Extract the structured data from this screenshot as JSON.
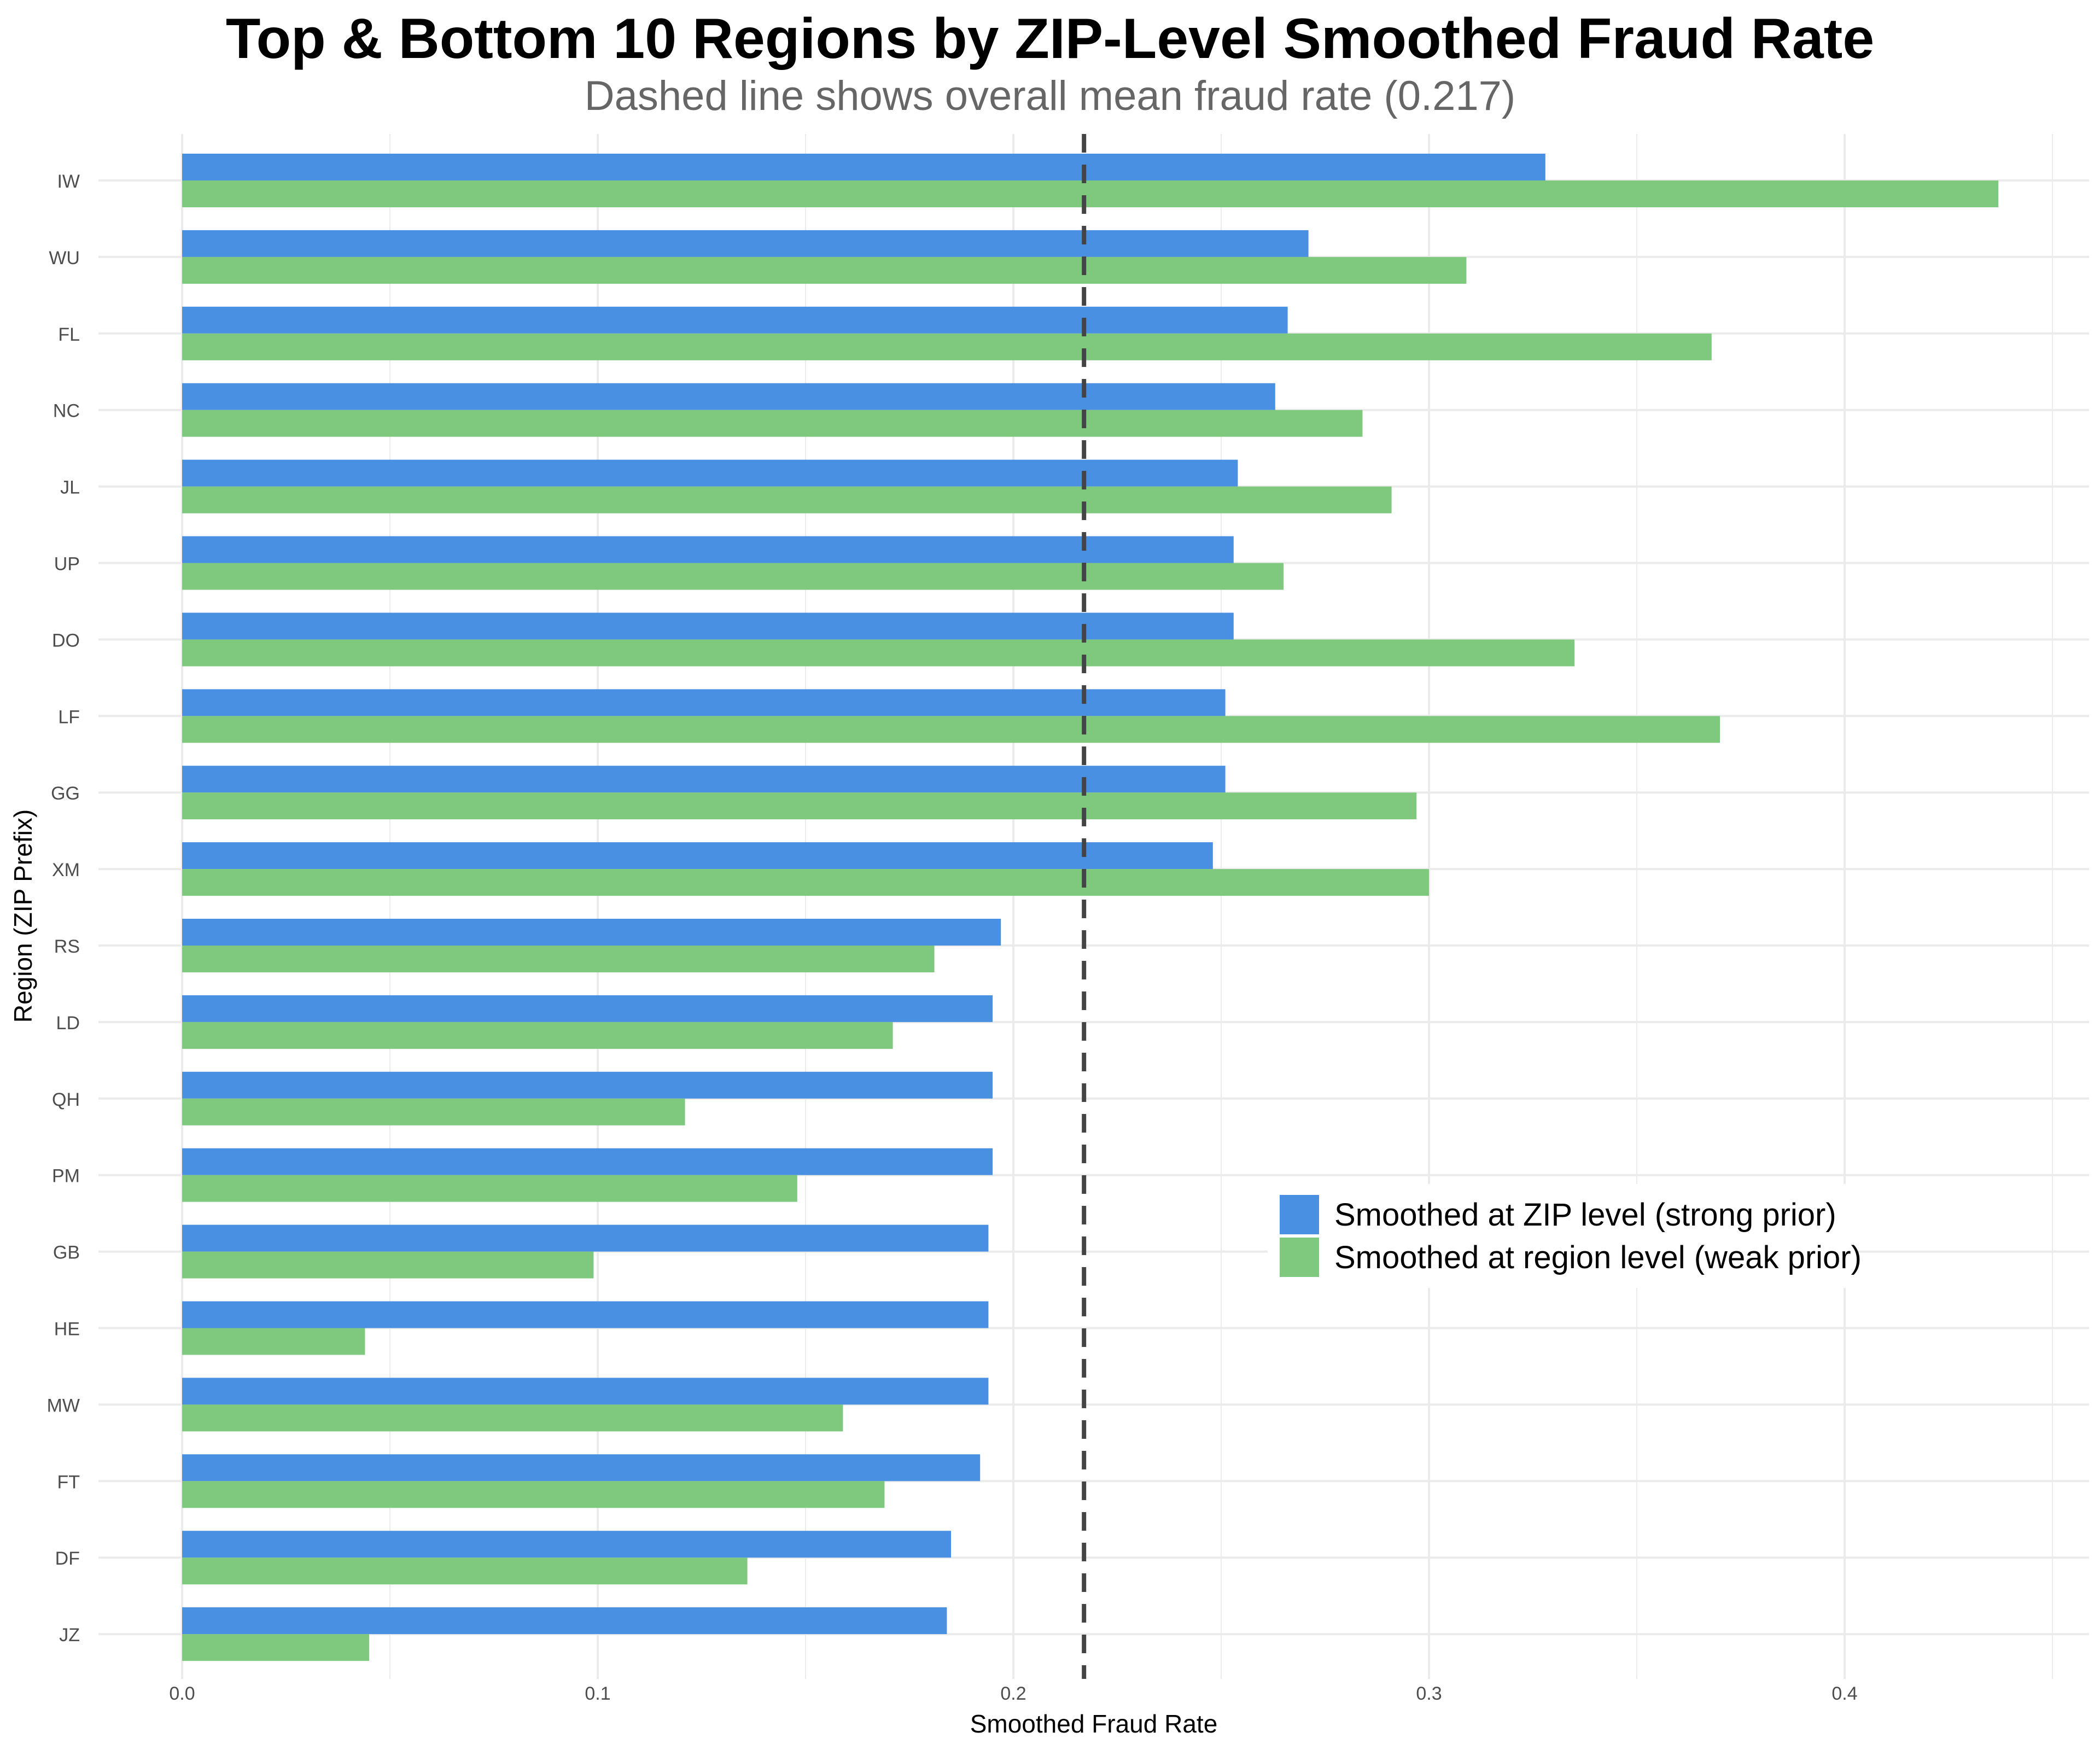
{
  "title": "Top & Bottom 10 Regions by ZIP-Level Smoothed Fraud Rate",
  "subtitle": "Dashed line shows overall mean fraud rate (0.217)",
  "colors": {
    "zip": "#4A90E2",
    "region": "#7FC97F",
    "mean_line": "#444444",
    "grid": "#EBEBEB"
  },
  "legend": {
    "placement": "bottom-right",
    "items": [
      {
        "label": "Smoothed at ZIP level (strong prior)",
        "color": "#4A90E2"
      },
      {
        "label": "Smoothed at region level (weak prior)",
        "color": "#7FC97F"
      }
    ]
  },
  "chart_data": {
    "type": "bar",
    "orientation": "horizontal",
    "title": "Top & Bottom 10 Regions by ZIP-Level Smoothed Fraud Rate",
    "subtitle": "Dashed line shows overall mean fraud rate (0.217)",
    "xlabel": "Smoothed Fraud Rate",
    "ylabel": "Region (ZIP Prefix)",
    "xlim": [
      0,
      0.45
    ],
    "x_ticks": [
      0.0,
      0.1,
      0.2,
      0.3,
      0.4
    ],
    "x_tick_labels": [
      "0.0",
      "0.1",
      "0.2",
      "0.3",
      "0.4"
    ],
    "grid": true,
    "mean_line": 0.217,
    "categories": [
      "IW",
      "WU",
      "FL",
      "NC",
      "JL",
      "UP",
      "DO",
      "LF",
      "GG",
      "XM",
      "RS",
      "LD",
      "QH",
      "PM",
      "GB",
      "HE",
      "MW",
      "FT",
      "DF",
      "JZ"
    ],
    "series": [
      {
        "name": "Smoothed at ZIP level (strong prior)",
        "color": "#4A90E2",
        "values": [
          0.328,
          0.271,
          0.266,
          0.263,
          0.254,
          0.253,
          0.253,
          0.251,
          0.251,
          0.248,
          0.197,
          0.195,
          0.195,
          0.195,
          0.194,
          0.194,
          0.194,
          0.192,
          0.185,
          0.184
        ]
      },
      {
        "name": "Smoothed at region level (weak prior)",
        "color": "#7FC97F",
        "values": [
          0.437,
          0.309,
          0.368,
          0.284,
          0.291,
          0.265,
          0.335,
          0.37,
          0.297,
          0.3,
          0.181,
          0.171,
          0.121,
          0.148,
          0.099,
          0.044,
          0.159,
          0.169,
          0.136,
          0.045
        ]
      }
    ]
  }
}
